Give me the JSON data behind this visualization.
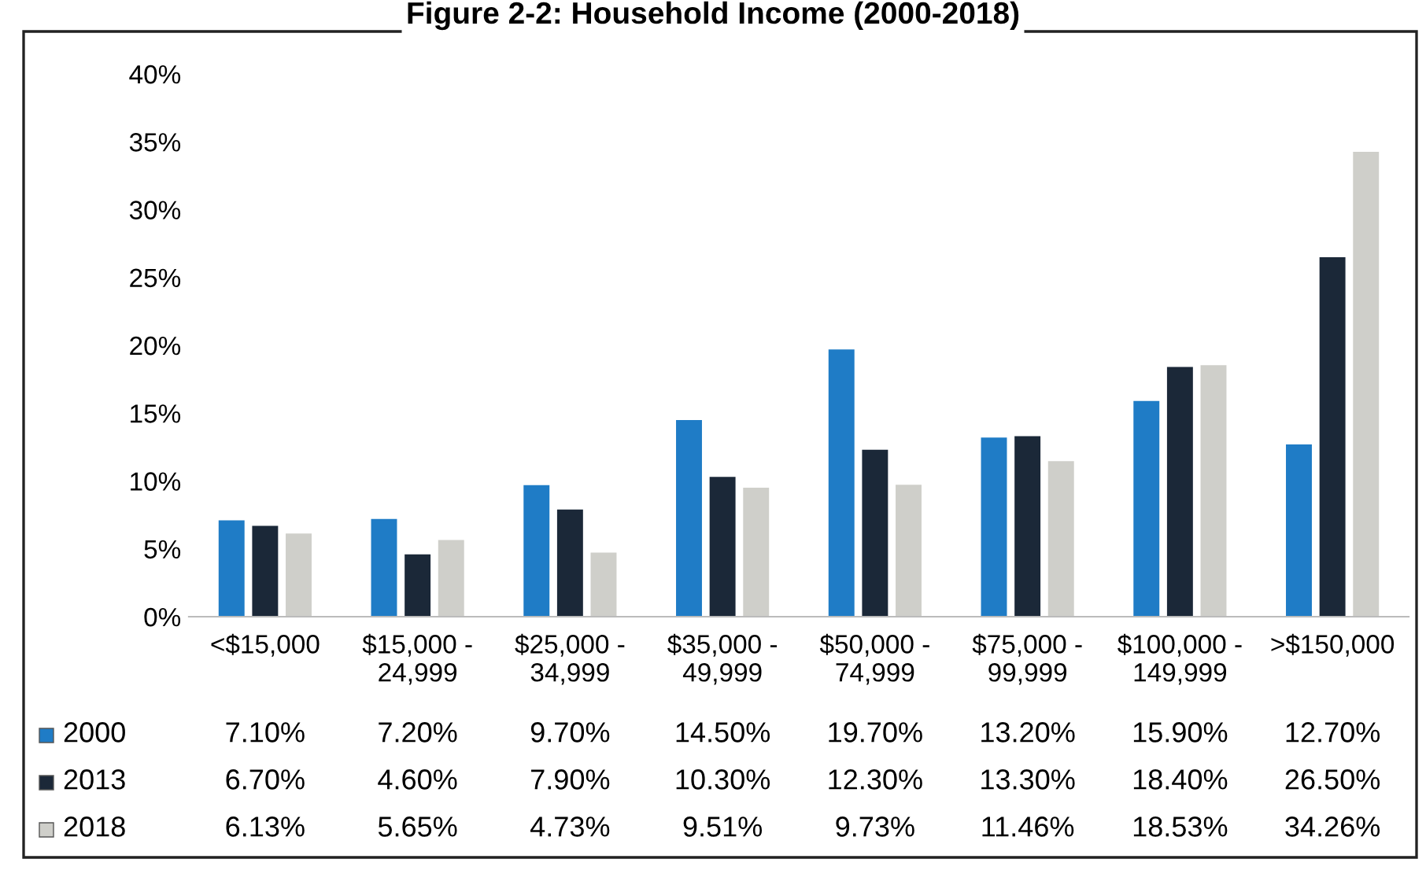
{
  "chart_data": {
    "type": "bar",
    "title": "Figure 2-2: Household Income (2000-2018)",
    "categories": [
      "<$15,000",
      "$15,000 - 24,999",
      "$25,000 - 34,999",
      "$35,000 - 49,999",
      "$50,000 - 74,999",
      "$75,000 - 99,999",
      "$100,000 - 149,999",
      ">$150,000"
    ],
    "series": [
      {
        "name": "2000",
        "color": "#1f7cc6",
        "values": [
          7.1,
          7.2,
          9.7,
          14.5,
          19.7,
          13.2,
          15.9,
          12.7
        ],
        "value_labels": [
          "7.10%",
          "7.20%",
          "9.70%",
          "14.50%",
          "19.70%",
          "13.20%",
          "15.90%",
          "12.70%"
        ]
      },
      {
        "name": "2013",
        "color": "#1b2838",
        "values": [
          6.7,
          4.6,
          7.9,
          10.3,
          12.3,
          13.3,
          18.4,
          26.5
        ],
        "value_labels": [
          "6.70%",
          "4.60%",
          "7.90%",
          "10.30%",
          "12.30%",
          "13.30%",
          "18.40%",
          "26.50%"
        ]
      },
      {
        "name": "2018",
        "color": "#cfcfca",
        "values": [
          6.13,
          5.65,
          4.73,
          9.51,
          9.73,
          11.46,
          18.53,
          34.26
        ],
        "value_labels": [
          "6.13%",
          "5.65%",
          "4.73%",
          "9.51%",
          "9.73%",
          "11.46%",
          "18.53%",
          "34.26%"
        ]
      }
    ],
    "ylim": [
      0,
      40
    ],
    "yticks": [
      {
        "value": 0,
        "label": "0%"
      },
      {
        "value": 5,
        "label": "5%"
      },
      {
        "value": 10,
        "label": "10%"
      },
      {
        "value": 15,
        "label": "15%"
      },
      {
        "value": 20,
        "label": "20%"
      },
      {
        "value": 25,
        "label": "25%"
      },
      {
        "value": 30,
        "label": "30%"
      },
      {
        "value": 35,
        "label": "35%"
      },
      {
        "value": 40,
        "label": "40%"
      }
    ],
    "grid": false,
    "legend": "bottom left"
  }
}
